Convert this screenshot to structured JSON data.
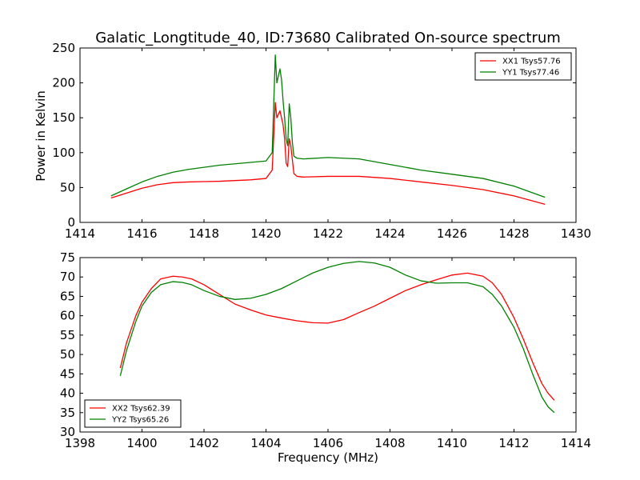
{
  "chart_data": [
    {
      "type": "line",
      "title": "Galatic_Longtitude_40, ID:73680 Calibrated On-source spectrum",
      "xlabel": "",
      "ylabel": "Power in Kelvin",
      "xlim": [
        1414,
        1430
      ],
      "ylim": [
        0,
        250
      ],
      "x_ticks": [
        1414,
        1416,
        1418,
        1420,
        1422,
        1424,
        1426,
        1428,
        1430
      ],
      "y_ticks": [
        0,
        50,
        100,
        150,
        200,
        250
      ],
      "grid": false,
      "legend_placement": "top-right",
      "series": [
        {
          "name": "XX1 Tsys57.76",
          "color": "#ff0000",
          "x": [
            1415.0,
            1415.5,
            1416.0,
            1416.5,
            1417.0,
            1417.5,
            1418.0,
            1418.5,
            1419.0,
            1419.5,
            1420.0,
            1420.2,
            1420.3,
            1420.35,
            1420.45,
            1420.5,
            1420.55,
            1420.6,
            1420.65,
            1420.7,
            1420.75,
            1420.8,
            1420.85,
            1420.9,
            1421.0,
            1421.2,
            1422.0,
            1423.0,
            1424.0,
            1425.0,
            1426.0,
            1427.0,
            1428.0,
            1429.0
          ],
          "values": [
            35,
            42,
            49,
            54,
            57,
            58,
            58.5,
            59,
            60,
            61,
            63,
            75,
            172,
            150,
            160,
            150,
            140,
            120,
            85,
            80,
            120,
            110,
            90,
            70,
            66,
            65,
            66,
            66,
            63,
            58,
            53,
            47,
            38,
            26
          ]
        },
        {
          "name": "YY1 Tsys77.46",
          "color": "#008000",
          "x": [
            1415.0,
            1415.5,
            1416.0,
            1416.5,
            1417.0,
            1417.5,
            1418.0,
            1418.5,
            1419.0,
            1419.5,
            1420.0,
            1420.2,
            1420.3,
            1420.35,
            1420.45,
            1420.5,
            1420.55,
            1420.6,
            1420.65,
            1420.7,
            1420.75,
            1420.8,
            1420.85,
            1420.9,
            1421.0,
            1421.2,
            1422.0,
            1423.0,
            1424.0,
            1425.0,
            1426.0,
            1427.0,
            1428.0,
            1429.0
          ],
          "values": [
            38,
            48,
            58,
            66,
            72,
            76,
            79,
            82,
            84,
            86,
            88,
            100,
            240,
            200,
            220,
            205,
            175,
            150,
            120,
            110,
            170,
            150,
            115,
            95,
            92,
            91,
            93,
            91,
            83,
            75,
            69,
            63,
            52,
            36
          ]
        }
      ]
    },
    {
      "type": "line",
      "title": "",
      "xlabel": "Frequency (MHz)",
      "ylabel": "",
      "xlim": [
        1398,
        1414
      ],
      "ylim": [
        30,
        75
      ],
      "x_ticks": [
        1398,
        1400,
        1402,
        1404,
        1406,
        1408,
        1410,
        1412,
        1414
      ],
      "y_ticks": [
        30,
        35,
        40,
        45,
        50,
        55,
        60,
        65,
        70,
        75
      ],
      "grid": false,
      "legend_placement": "bottom-left",
      "series": [
        {
          "name": "XX2 Tsys62.39",
          "color": "#ff0000",
          "x": [
            1399.3,
            1399.5,
            1399.8,
            1400.0,
            1400.3,
            1400.6,
            1401.0,
            1401.3,
            1401.6,
            1402.0,
            1402.5,
            1403.0,
            1403.5,
            1404.0,
            1404.5,
            1405.0,
            1405.5,
            1406.0,
            1406.5,
            1407.0,
            1407.5,
            1408.0,
            1408.5,
            1409.0,
            1409.5,
            1410.0,
            1410.5,
            1411.0,
            1411.3,
            1411.6,
            1412.0,
            1412.3,
            1412.6,
            1412.9,
            1413.1,
            1413.3
          ],
          "values": [
            46.5,
            53,
            60,
            63.5,
            67,
            69.5,
            70.2,
            70,
            69.5,
            68,
            65.5,
            63,
            61.5,
            60.2,
            59.4,
            58.7,
            58.2,
            58.1,
            59,
            60.8,
            62.5,
            64.5,
            66.5,
            68,
            69.3,
            70.5,
            71,
            70.2,
            68.5,
            65.5,
            59.5,
            54,
            48,
            42.5,
            40,
            38.2
          ]
        },
        {
          "name": "YY2 Tsys65.26",
          "color": "#008000",
          "x": [
            1399.3,
            1399.5,
            1399.8,
            1400.0,
            1400.3,
            1400.6,
            1401.0,
            1401.3,
            1401.6,
            1402.0,
            1402.5,
            1403.0,
            1403.5,
            1404.0,
            1404.5,
            1405.0,
            1405.5,
            1406.0,
            1406.5,
            1407.0,
            1407.5,
            1408.0,
            1408.5,
            1409.0,
            1409.5,
            1410.0,
            1410.5,
            1411.0,
            1411.3,
            1411.6,
            1412.0,
            1412.3,
            1412.6,
            1412.9,
            1413.1,
            1413.3
          ],
          "values": [
            44.5,
            51,
            58.5,
            62.5,
            66,
            68,
            68.8,
            68.6,
            68,
            66.5,
            65,
            64.2,
            64.5,
            65.5,
            67,
            69,
            71,
            72.5,
            73.5,
            74,
            73.6,
            72.5,
            70.5,
            69,
            68.4,
            68.5,
            68.5,
            67.5,
            65.5,
            62.5,
            57,
            51.5,
            45,
            39,
            36.5,
            35
          ]
        }
      ]
    }
  ]
}
